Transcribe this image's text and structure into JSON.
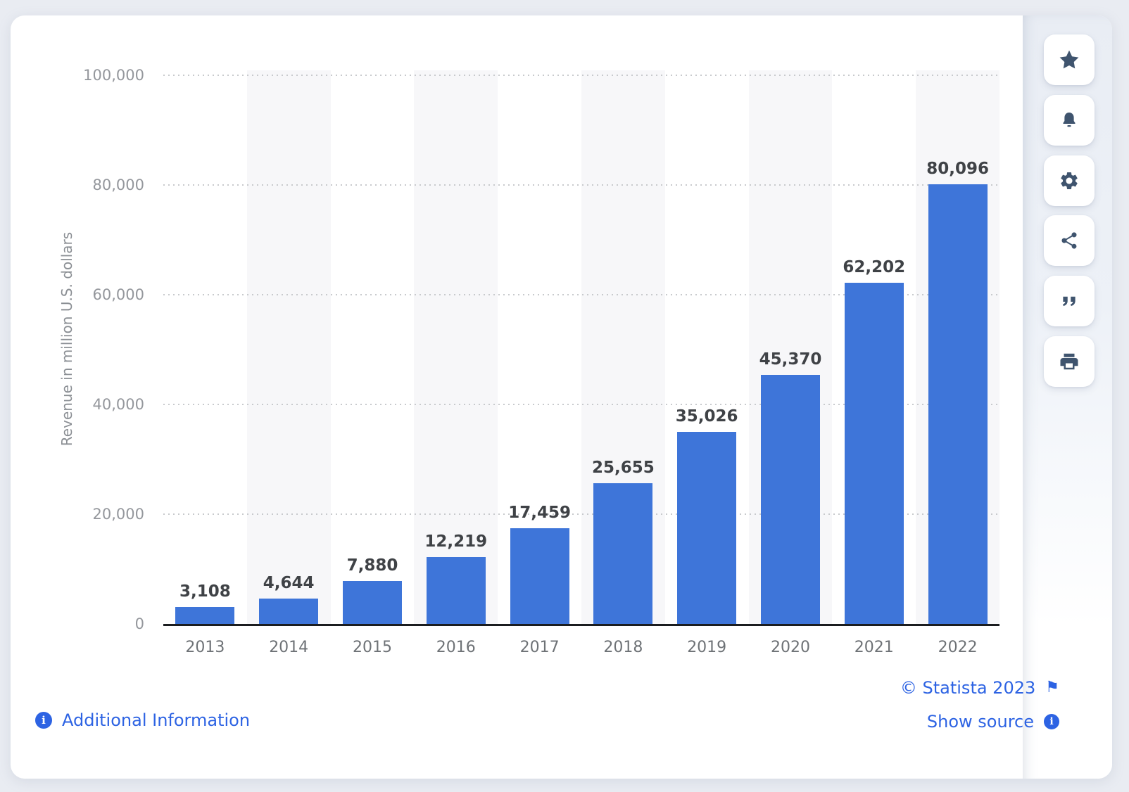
{
  "chart_data": {
    "type": "bar",
    "title": "",
    "categories": [
      "2013",
      "2014",
      "2015",
      "2016",
      "2017",
      "2018",
      "2019",
      "2020",
      "2021",
      "2022"
    ],
    "values": [
      3108,
      4644,
      7880,
      12219,
      17459,
      25655,
      35026,
      45370,
      62202,
      80096
    ],
    "value_labels": [
      "3,108",
      "4,644",
      "7,880",
      "12,219",
      "17,459",
      "25,655",
      "35,026",
      "45,370",
      "62,202",
      "80,096"
    ],
    "xlabel": "",
    "ylabel": "Revenue in million U.S. dollars",
    "ylim": [
      0,
      100000
    ],
    "yticks": [
      0,
      20000,
      40000,
      60000,
      80000,
      100000
    ],
    "ytick_labels": [
      "0",
      "20,000",
      "40,000",
      "60,000",
      "80,000",
      "100,000"
    ],
    "grid": "horizontal-dotted",
    "legend": "none",
    "bar_color": "#3E75D9",
    "alt_column_stripe_color": "#f7f7f9"
  },
  "toolbar": {
    "buttons": [
      {
        "name": "favorite",
        "icon": "star-icon"
      },
      {
        "name": "notifications",
        "icon": "bell-icon"
      },
      {
        "name": "settings",
        "icon": "gear-icon"
      },
      {
        "name": "share",
        "icon": "share-icon"
      },
      {
        "name": "cite",
        "icon": "quote-icon"
      },
      {
        "name": "print",
        "icon": "printer-icon"
      }
    ]
  },
  "footer": {
    "additional_information": "Additional Information",
    "copyright": "© Statista 2023",
    "show_source": "Show source",
    "info_icon_glyph": "i",
    "flag_icon_glyph": "⚑"
  },
  "colors": {
    "page_background": "#e9ecf2",
    "card_background": "#ffffff",
    "bar": "#3E75D9",
    "link_blue": "#2d63e3",
    "icon_slate": "#3f546e",
    "value_label": "#3f4246",
    "x_tick": "#6e7276",
    "y_tick": "#94979c",
    "axis_line": "#1b1d20",
    "grid_dot": "#c8cacd"
  }
}
